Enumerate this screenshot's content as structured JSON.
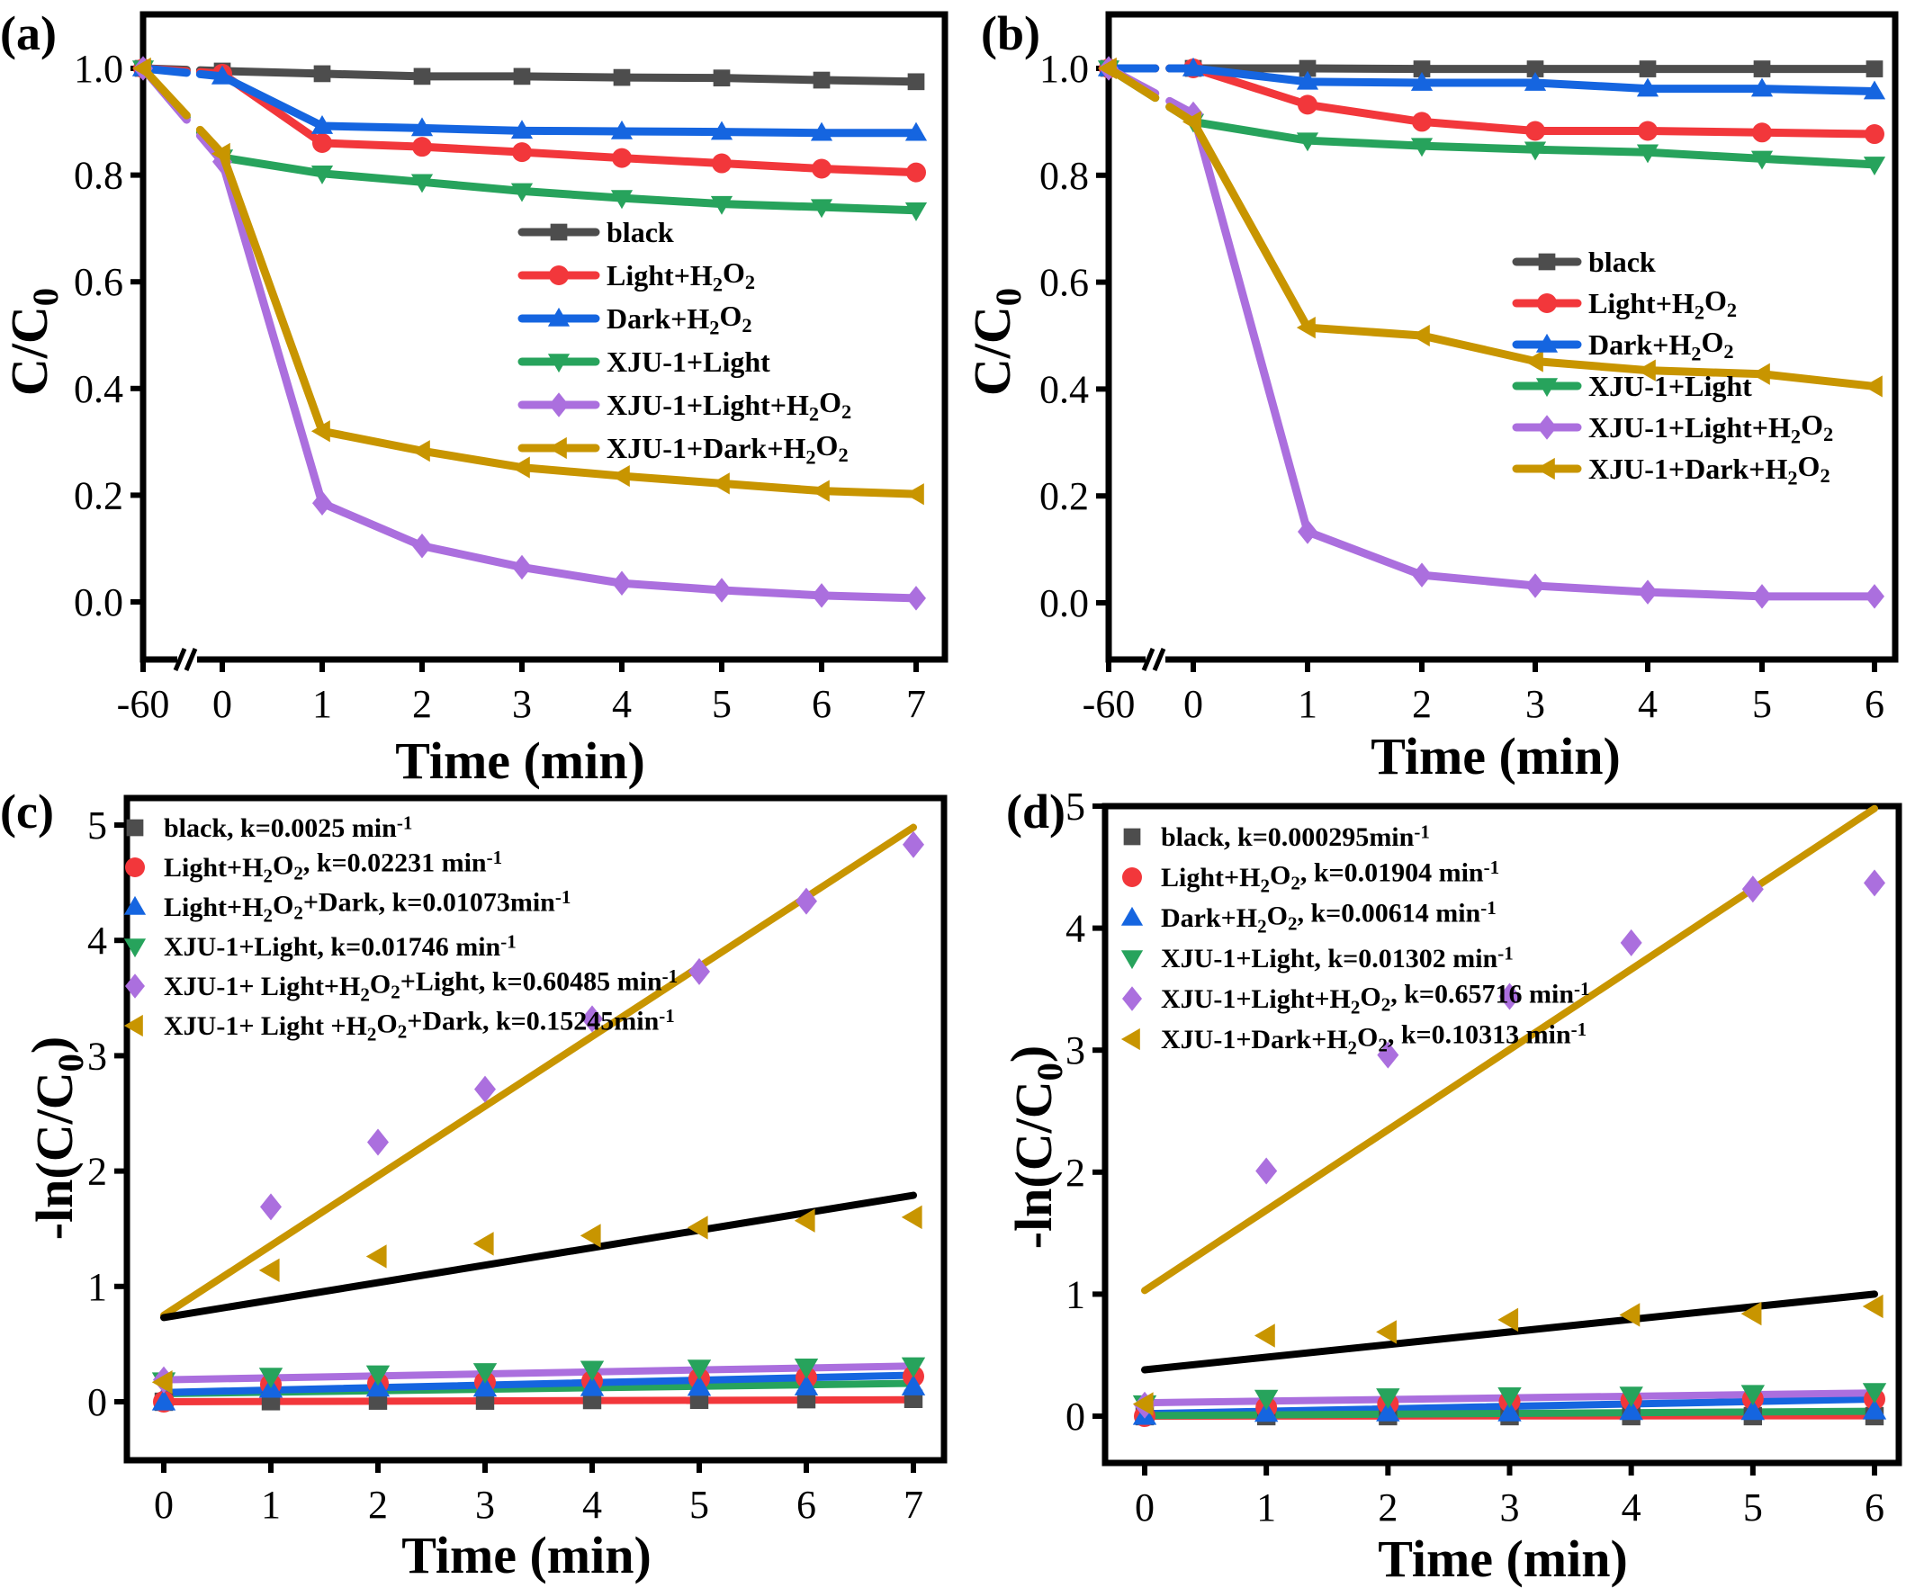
{
  "colors": {
    "black": "#4d4d4d",
    "light_h2o2": "#f2373b",
    "dark_h2o2": "#1565e0",
    "xju_light": "#27a35c",
    "xju_light_h2o2": "#ab6fde",
    "xju_dark_h2o2": "#c89500",
    "fit_black": "#000000"
  },
  "chart_data": [
    {
      "id": "a",
      "panel_label": "(a)",
      "type": "line",
      "xlabel": "Time (min)",
      "ylabel": "C/C0",
      "x": [
        -60,
        0,
        1,
        2,
        3,
        4,
        5,
        6,
        7
      ],
      "xtick_labels": [
        "-60",
        "0",
        "1",
        "2",
        "3",
        "4",
        "5",
        "6",
        "7"
      ],
      "axis_break": "between -60 and 0",
      "ylim": [
        -0.1,
        1.08
      ],
      "yticks": [
        0.0,
        0.2,
        0.4,
        0.6,
        0.8,
        1.0
      ],
      "ytick_labels": [
        "0.0",
        "0.2",
        "0.4",
        "0.6",
        "0.8",
        "1.0"
      ],
      "legend_position": "center-right",
      "series": [
        {
          "name": "black",
          "marker": "square",
          "color_key": "black",
          "values": [
            1.0,
            0.995,
            0.99,
            0.985,
            0.985,
            0.983,
            0.982,
            0.978,
            0.975
          ]
        },
        {
          "name": "Light+H2O2",
          "marker": "circle",
          "color_key": "light_h2o2",
          "values": [
            1.0,
            0.99,
            0.86,
            0.853,
            0.843,
            0.832,
            0.822,
            0.812,
            0.805
          ]
        },
        {
          "name": "Dark+H2O2",
          "marker": "triangle-up",
          "color_key": "dark_h2o2",
          "values": [
            1.0,
            0.985,
            0.892,
            0.888,
            0.883,
            0.882,
            0.881,
            0.879,
            0.879
          ]
        },
        {
          "name": "XJU-1+Light",
          "marker": "triangle-down",
          "color_key": "xju_light",
          "values": [
            1.0,
            0.833,
            0.803,
            0.787,
            0.77,
            0.757,
            0.746,
            0.74,
            0.734
          ]
        },
        {
          "name": "XJU-1+Light+H2O2",
          "marker": "diamond",
          "color_key": "xju_light_h2o2",
          "values": [
            1.0,
            0.825,
            0.185,
            0.105,
            0.065,
            0.035,
            0.022,
            0.012,
            0.007
          ]
        },
        {
          "name": "XJU-1+Dark+H2O2",
          "marker": "triangle-left",
          "color_key": "xju_dark_h2o2",
          "values": [
            1.0,
            0.84,
            0.32,
            0.283,
            0.252,
            0.236,
            0.222,
            0.208,
            0.202
          ]
        }
      ]
    },
    {
      "id": "b",
      "panel_label": "(b)",
      "type": "line",
      "xlabel": "Time (min)",
      "ylabel": "C/C0",
      "x": [
        -60,
        0,
        1,
        2,
        3,
        4,
        5,
        6
      ],
      "xtick_labels": [
        "-60",
        "0",
        "1",
        "2",
        "3",
        "4",
        "5",
        "6"
      ],
      "axis_break": "between -60 and 0",
      "ylim": [
        -0.1,
        1.08
      ],
      "yticks": [
        0.0,
        0.2,
        0.4,
        0.6,
        0.8,
        1.0
      ],
      "ytick_labels": [
        "0.0",
        "0.2",
        "0.4",
        "0.6",
        "0.8",
        "1.0"
      ],
      "legend_position": "center-right",
      "series": [
        {
          "name": "black",
          "marker": "square",
          "color_key": "black",
          "values": [
            1.0,
            1.0,
            1.0,
            0.999,
            0.999,
            0.999,
            0.999,
            0.999
          ]
        },
        {
          "name": "Light+H2O2",
          "marker": "circle",
          "color_key": "light_h2o2",
          "values": [
            1.0,
            1.0,
            0.932,
            0.9,
            0.883,
            0.883,
            0.88,
            0.877
          ]
        },
        {
          "name": "Dark+H2O2",
          "marker": "triangle-up",
          "color_key": "dark_h2o2",
          "values": [
            1.0,
            1.0,
            0.975,
            0.973,
            0.973,
            0.962,
            0.962,
            0.957
          ]
        },
        {
          "name": "XJU-1+Light",
          "marker": "triangle-down",
          "color_key": "xju_light",
          "values": [
            1.0,
            0.9,
            0.865,
            0.855,
            0.848,
            0.843,
            0.831,
            0.82
          ]
        },
        {
          "name": "XJU-1+Light+H2O2",
          "marker": "diamond",
          "color_key": "xju_light_h2o2",
          "values": [
            1.0,
            0.915,
            0.133,
            0.052,
            0.032,
            0.02,
            0.012,
            0.012
          ]
        },
        {
          "name": "XJU-1+Dark+H2O2",
          "marker": "triangle-left",
          "color_key": "xju_dark_h2o2",
          "values": [
            1.0,
            0.9,
            0.515,
            0.5,
            0.452,
            0.435,
            0.428,
            0.405
          ]
        }
      ]
    },
    {
      "id": "c",
      "panel_label": "(c)",
      "type": "scatter",
      "xlabel": "Time (min)",
      "ylabel": "-ln(C/C0)",
      "x": [
        0,
        1,
        2,
        3,
        4,
        5,
        6,
        7
      ],
      "xtick_labels": [
        "0",
        "1",
        "2",
        "3",
        "4",
        "5",
        "6",
        "7"
      ],
      "xlim": [
        -0.35,
        7.3
      ],
      "ylim": [
        -0.5,
        5.3
      ],
      "yticks": [
        0,
        1,
        2,
        3,
        4,
        5
      ],
      "ytick_labels": [
        "0",
        "1",
        "2",
        "3",
        "4",
        "5"
      ],
      "legend_position": "top-left",
      "series": [
        {
          "name": "black",
          "legend": "black, k=0.0025 min-1",
          "k": "0.0025",
          "marker": "square",
          "color_key": "black",
          "values": [
            0.0,
            0.005,
            0.01,
            0.01,
            0.015,
            0.017,
            0.022,
            0.025
          ],
          "fit": [
            0.0,
            0.0175
          ],
          "fit_color_key": "light_h2o2"
        },
        {
          "name": "Light+H2O2",
          "legend": "Light+H2O2, k=0.02231 min-1",
          "k": "0.02231",
          "marker": "circle",
          "color_key": "light_h2o2",
          "values": [
            0.0,
            0.15,
            0.16,
            0.17,
            0.18,
            0.2,
            0.21,
            0.22
          ],
          "fit": [
            0.07,
            0.16
          ],
          "fit_color_key": "xju_light"
        },
        {
          "name": "Light+H2O2+Dark",
          "legend": "Light+H2O2+Dark, k=0.01073min-1",
          "k": "0.01073",
          "marker": "triangle-up",
          "color_key": "dark_h2o2",
          "values": [
            0.0,
            0.11,
            0.12,
            0.12,
            0.125,
            0.127,
            0.13,
            0.13
          ],
          "fit": [
            0.08,
            0.23
          ],
          "fit_color_key": "dark_h2o2"
        },
        {
          "name": "XJU-1+Light",
          "legend": "XJU-1+Light, k=0.01746 min-1",
          "k": "0.01746",
          "marker": "triangle-down",
          "color_key": "xju_light",
          "values": [
            0.18,
            0.22,
            0.24,
            0.26,
            0.28,
            0.29,
            0.3,
            0.31
          ],
          "fit": [
            0.19,
            0.31
          ],
          "fit_color_key": "xju_light_h2o2"
        },
        {
          "name": "XJU-1+ Light+H2O2+Light",
          "legend": "XJU-1+ Light+H2O2+Light, k=0.60485 min-1",
          "k": "0.60485",
          "marker": "diamond",
          "color_key": "xju_light_h2o2",
          "values": [
            0.19,
            1.69,
            2.25,
            2.71,
            3.32,
            3.73,
            4.34,
            4.83
          ],
          "fit": [
            0.75,
            4.98
          ],
          "fit_color_key": "xju_dark_h2o2"
        },
        {
          "name": "XJU-1+ Light +H2O2+Dark",
          "legend": "XJU-1+ Light +H2O2+Dark, k=0.15245min-1",
          "k": "0.15245",
          "marker": "triangle-left",
          "color_key": "xju_dark_h2o2",
          "values": [
            0.17,
            1.14,
            1.26,
            1.37,
            1.44,
            1.51,
            1.57,
            1.6
          ],
          "fit": [
            0.73,
            1.79
          ],
          "fit_color_key": "fit_black"
        }
      ]
    },
    {
      "id": "d",
      "panel_label": "(d)",
      "type": "scatter",
      "xlabel": "Time (min)",
      "ylabel": "-ln(C/C0)",
      "x": [
        0,
        1,
        2,
        3,
        4,
        5,
        6
      ],
      "xtick_labels": [
        "0",
        "1",
        "2",
        "3",
        "4",
        "5",
        "6"
      ],
      "xlim": [
        -0.32,
        6.2
      ],
      "ylim": [
        -0.4,
        5.0
      ],
      "yticks": [
        0,
        1,
        2,
        3,
        4,
        5
      ],
      "ytick_labels": [
        "0",
        "1",
        "2",
        "3",
        "4",
        "5"
      ],
      "legend_position": "top-left",
      "series": [
        {
          "name": "black",
          "legend": "black, k=0.000295min-1",
          "k": "0.000295",
          "marker": "square",
          "color_key": "black",
          "values": [
            0.0,
            0.0,
            0.0,
            0.0,
            0.0,
            0.0,
            0.0
          ],
          "fit": [
            0.0,
            0.003
          ],
          "fit_color_key": "light_h2o2"
        },
        {
          "name": "Light+H2O2",
          "legend": "Light+H2O2, k=0.01904 min-1",
          "k": "0.01904",
          "marker": "circle",
          "color_key": "light_h2o2",
          "values": [
            0.0,
            0.07,
            0.1,
            0.12,
            0.13,
            0.14,
            0.14
          ],
          "fit": [
            0.02,
            0.14
          ],
          "fit_color_key": "dark_h2o2"
        },
        {
          "name": "Dark+H2O2",
          "legend": "Dark+H2O2, k=0.00614 min-1",
          "k": "0.00614",
          "marker": "triangle-up",
          "color_key": "dark_h2o2",
          "values": [
            0.0,
            0.025,
            0.028,
            0.028,
            0.039,
            0.039,
            0.044
          ],
          "fit": [
            0.005,
            0.04
          ],
          "fit_color_key": "xju_light"
        },
        {
          "name": "XJU-1+Light",
          "legend": "XJU-1+Light, k=0.01302 min-1",
          "k": "0.01302",
          "marker": "triangle-down",
          "color_key": "xju_light",
          "values": [
            0.1,
            0.145,
            0.157,
            0.165,
            0.171,
            0.185,
            0.2
          ],
          "fit": [
            0.11,
            0.19
          ],
          "fit_color_key": "xju_light_h2o2"
        },
        {
          "name": "XJU-1+Light+H2O2",
          "legend": "XJU-1+Light+H2O2, k=0.65716 min-1",
          "k": "0.65716",
          "marker": "diamond",
          "color_key": "xju_light_h2o2",
          "values": [
            0.09,
            2.01,
            2.96,
            3.44,
            3.88,
            4.32,
            4.37
          ],
          "fit": [
            1.03,
            4.98
          ],
          "fit_color_key": "xju_dark_h2o2"
        },
        {
          "name": "XJU-1+Dark+H2O2",
          "legend": "XJU-1+Dark+H2O2, k=0.10313 min-1",
          "k": "0.10313",
          "marker": "triangle-left",
          "color_key": "xju_dark_h2o2",
          "values": [
            0.1,
            0.66,
            0.69,
            0.79,
            0.83,
            0.84,
            0.9
          ],
          "fit": [
            0.38,
            1.0
          ],
          "fit_color_key": "fit_black"
        }
      ]
    }
  ]
}
